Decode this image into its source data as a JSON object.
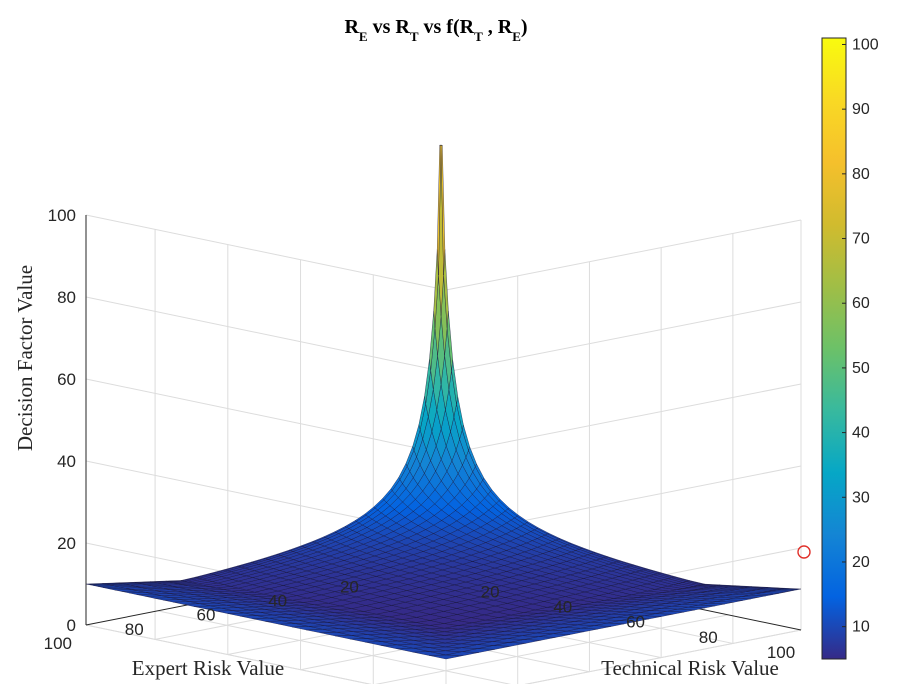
{
  "chart_data": {
    "type": "surface",
    "title": {
      "text": "R_E vs R_T vs f(R_T , R_E)",
      "parts": [
        {
          "base": "R",
          "sub": "E"
        },
        {
          "text": " vs "
        },
        {
          "base": "R",
          "sub": "T"
        },
        {
          "text": " vs f("
        },
        {
          "base": "R",
          "sub": "T"
        },
        {
          "text": " , "
        },
        {
          "base": "R",
          "sub": "E"
        },
        {
          "text": ")"
        }
      ]
    },
    "xlabel": "Technical Risk Value",
    "ylabel": "Expert Risk Value",
    "zlabel": "Decision Factor Value",
    "xlim": [
      1,
      100
    ],
    "ylim": [
      1,
      100
    ],
    "zlim": [
      0,
      100
    ],
    "x_ticks": [
      "20",
      "40",
      "60",
      "80",
      "100"
    ],
    "y_ticks": [
      "20",
      "40",
      "60",
      "80",
      "100"
    ],
    "z_ticks": [
      "0",
      "20",
      "40",
      "60",
      "80",
      "100"
    ],
    "colorbar": {
      "ticks": [
        "10",
        "20",
        "30",
        "40",
        "50",
        "60",
        "70",
        "80",
        "90",
        "100"
      ],
      "range": [
        5,
        101
      ],
      "colormap": "parula"
    },
    "grid": true,
    "surface_samples": {
      "x_technical": [
        1,
        50,
        100
      ],
      "y_expert": [
        1,
        50,
        100
      ],
      "z": [
        [
          100,
          3,
          10
        ],
        [
          3,
          3,
          10
        ],
        [
          10,
          10,
          10
        ]
      ],
      "note_rows": "z[i][j] at expert y_expert[i], technical x_technical[j]"
    },
    "peak": {
      "technical": 1,
      "expert": 1,
      "value": 100
    }
  }
}
